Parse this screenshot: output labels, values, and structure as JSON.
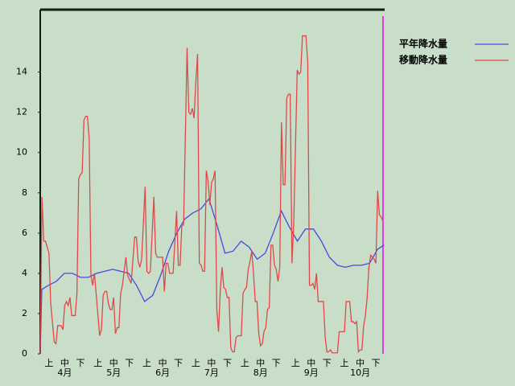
{
  "chart_data": {
    "type": "line",
    "xlim": [
      0,
      197
    ],
    "ylim": [
      0,
      17.1
    ],
    "yticks": [
      0,
      2,
      4,
      6,
      8,
      10,
      12,
      14
    ],
    "xticks": [
      {
        "value": 5,
        "label": "上"
      },
      {
        "value": 14,
        "label": "中"
      },
      {
        "value": 23,
        "label": "下"
      },
      {
        "value": 33,
        "label": "上"
      },
      {
        "value": 42,
        "label": "中"
      },
      {
        "value": 51,
        "label": "下"
      },
      {
        "value": 61,
        "label": "上"
      },
      {
        "value": 70,
        "label": "中"
      },
      {
        "value": 79,
        "label": "下"
      },
      {
        "value": 89,
        "label": "上"
      },
      {
        "value": 98,
        "label": "中"
      },
      {
        "value": 107,
        "label": "下"
      },
      {
        "value": 117,
        "label": "上"
      },
      {
        "value": 126,
        "label": "中"
      },
      {
        "value": 135,
        "label": "下"
      },
      {
        "value": 146,
        "label": "上"
      },
      {
        "value": 155,
        "label": "中"
      },
      {
        "value": 164,
        "label": "下"
      },
      {
        "value": 174,
        "label": "上"
      },
      {
        "value": 183,
        "label": "中"
      },
      {
        "value": 192,
        "label": "下"
      }
    ],
    "month_ticks": [
      {
        "value": 14,
        "label": "4月"
      },
      {
        "value": 42,
        "label": "5月"
      },
      {
        "value": 70,
        "label": "6月"
      },
      {
        "value": 98,
        "label": "7月"
      },
      {
        "value": 126,
        "label": "8月"
      },
      {
        "value": 155,
        "label": "9月"
      },
      {
        "value": 183,
        "label": "10月"
      }
    ],
    "series": [
      {
        "name": "平年降水量",
        "color": "#4848e0",
        "x": [
          0,
          0.9,
          4.6,
          9.2,
          13.8,
          18.4,
          23,
          27.6,
          32.2,
          36.8,
          41.4,
          46,
          50.6,
          55.1,
          59.7,
          64.3,
          68.9,
          73.5,
          78.1,
          82.7,
          87.3,
          91.9,
          96.5,
          101.1,
          105.7,
          110.3,
          114.9,
          119.5,
          124.1,
          128.7,
          133.3,
          137.9,
          142.5,
          147.1,
          151.7,
          156.3,
          160.8,
          165.4,
          170,
          174.6,
          179.2,
          183.8,
          188.4,
          193,
          196.7
        ],
        "values": [
          0,
          3.2,
          3.4,
          3.6,
          4.0,
          4.0,
          3.8,
          3.8,
          4.0,
          4.1,
          4.2,
          4.1,
          4.0,
          3.4,
          2.6,
          2.9,
          3.9,
          5.1,
          6.0,
          6.7,
          7.0,
          7.2,
          7.7,
          6.4,
          5.0,
          5.1,
          5.6,
          5.3,
          4.7,
          5.0,
          6.0,
          7.1,
          6.3,
          5.6,
          6.2,
          6.2,
          5.6,
          4.8,
          4.4,
          4.3,
          4.4,
          4.4,
          4.5,
          5.2,
          5.4
        ]
      },
      {
        "name": "移動降水量",
        "color": "#e04848",
        "x": [
          0,
          1,
          2,
          3,
          5,
          6,
          8,
          9,
          10,
          12,
          13,
          14,
          15,
          16,
          17,
          18,
          20,
          21,
          22,
          23,
          24,
          25,
          26,
          27,
          28,
          29,
          30,
          31,
          34,
          35,
          36,
          37,
          38,
          39,
          40,
          41,
          42,
          43,
          44,
          45,
          46,
          47,
          49,
          50,
          51,
          52,
          54,
          55,
          56,
          57,
          58,
          60,
          61,
          62,
          63,
          65,
          66,
          67,
          69,
          70,
          71,
          72,
          73,
          74,
          76,
          78,
          79,
          80,
          81,
          82,
          84,
          85,
          86,
          87,
          88,
          89,
          90,
          91,
          92,
          93,
          94,
          95,
          96,
          97,
          98,
          99,
          100,
          101,
          102,
          103,
          104,
          105,
          106,
          107,
          108,
          109,
          110,
          111,
          112,
          113,
          114,
          115,
          116,
          117,
          118,
          119,
          120,
          121,
          122,
          123,
          124,
          125,
          126,
          127,
          128,
          129,
          130,
          131,
          132,
          133,
          134,
          135,
          136,
          137,
          138,
          139,
          140,
          141,
          142,
          143,
          144,
          145,
          147,
          148,
          149,
          150,
          151,
          152,
          153,
          154,
          155,
          156,
          157,
          158,
          159,
          160,
          161,
          162,
          163,
          164,
          165,
          166,
          167,
          170,
          171,
          172,
          173,
          174,
          175,
          176,
          177,
          178,
          179,
          180,
          181,
          182,
          183,
          184,
          185,
          186,
          187,
          188,
          189,
          190,
          191,
          192,
          193,
          194,
          195,
          196
        ],
        "values": [
          0,
          7.8,
          5.6,
          5.6,
          5.0,
          2.5,
          0.6,
          0.5,
          1.4,
          1.4,
          1.2,
          2.4,
          2.6,
          2.4,
          2.8,
          1.9,
          1.9,
          3.0,
          8.7,
          8.9,
          9.0,
          11.6,
          11.8,
          11.8,
          10.7,
          3.9,
          3.4,
          4.0,
          0.9,
          1.2,
          2.9,
          3.1,
          3.1,
          2.5,
          2.2,
          2.2,
          2.8,
          1.0,
          1.3,
          1.3,
          3.0,
          3.4,
          4.8,
          3.9,
          3.7,
          3.5,
          5.8,
          5.8,
          4.6,
          4.3,
          4.7,
          8.3,
          4.1,
          4.0,
          4.1,
          7.8,
          5.0,
          4.8,
          4.8,
          4.8,
          3.1,
          4.5,
          4.5,
          4.0,
          4.0,
          7.1,
          4.4,
          4.4,
          6.4,
          6.4,
          15.2,
          12.0,
          11.9,
          12.2,
          11.7,
          13.5,
          14.9,
          4.5,
          4.4,
          4.1,
          4.1,
          9.1,
          8.6,
          7.4,
          8.5,
          8.7,
          9.1,
          2.2,
          1.1,
          3.2,
          4.3,
          3.3,
          3.2,
          2.8,
          2.8,
          0.3,
          0.1,
          0.1,
          0.8,
          0.9,
          0.9,
          0.9,
          3.0,
          3.2,
          3.3,
          4.2,
          4.6,
          5.1,
          4.0,
          2.6,
          2.6,
          1.0,
          0.4,
          0.5,
          1.1,
          1.3,
          2.2,
          2.3,
          5.4,
          5.4,
          4.4,
          4.2,
          3.6,
          4.3,
          11.5,
          8.4,
          8.4,
          12.7,
          12.9,
          12.9,
          4.5,
          6.5,
          14.1,
          13.9,
          14.0,
          15.8,
          15.8,
          15.8,
          14.5,
          3.4,
          3.4,
          3.5,
          3.2,
          4.0,
          2.6,
          2.6,
          2.6,
          2.6,
          0.8,
          0.1,
          0.1,
          0.2,
          0.05,
          0.05,
          1.1,
          1.1,
          1.1,
          1.1,
          2.6,
          2.6,
          2.6,
          1.6,
          1.6,
          1.5,
          1.6,
          0.1,
          0.2,
          0.2,
          1.4,
          1.9,
          2.8,
          4.3,
          4.9,
          4.8,
          4.7,
          4.5,
          8.1,
          6.9,
          6.8,
          6.6
        ]
      }
    ]
  }
}
